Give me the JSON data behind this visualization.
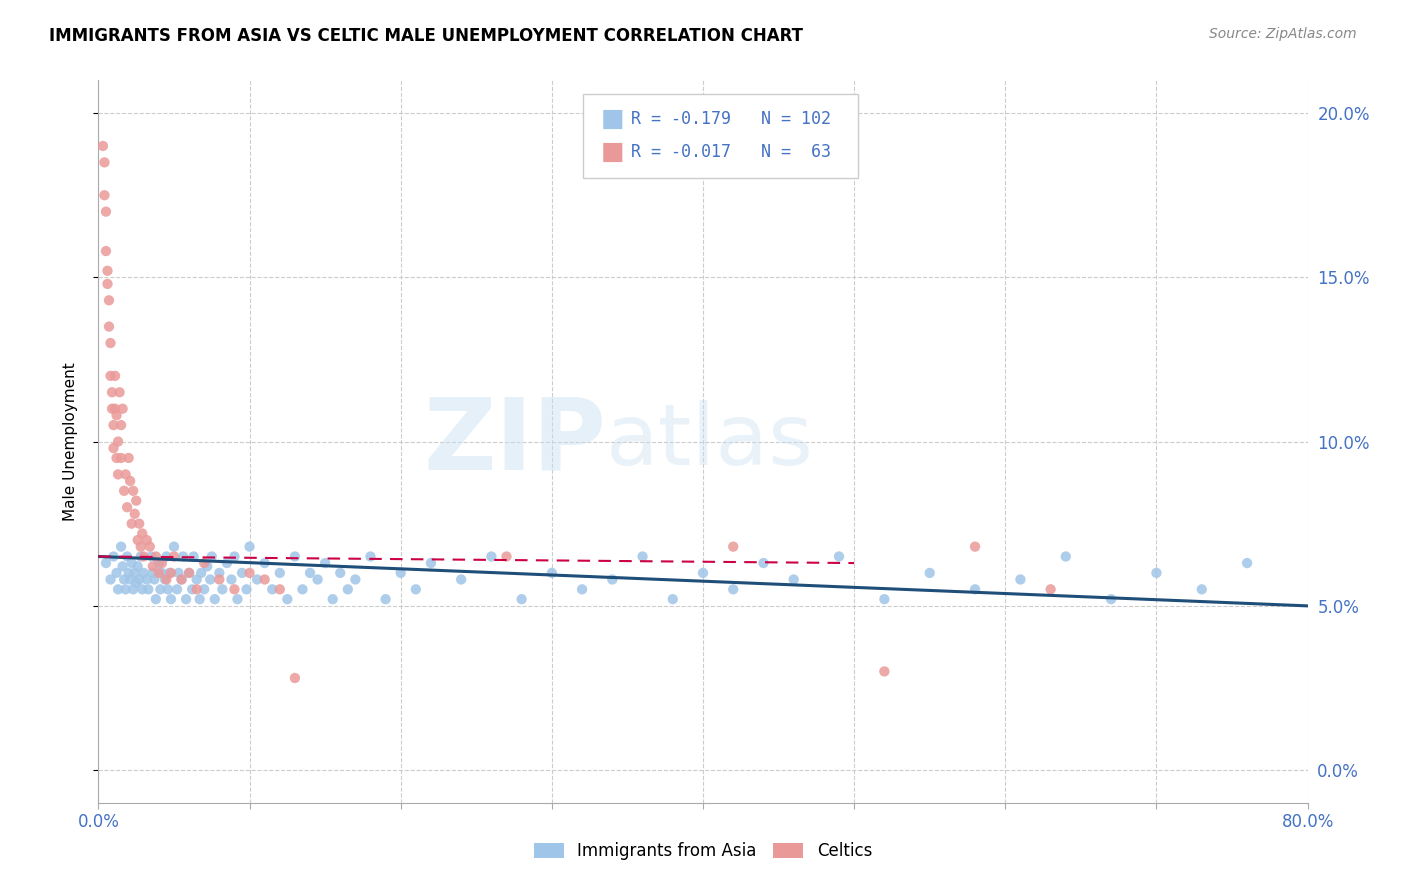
{
  "title": "IMMIGRANTS FROM ASIA VS CELTIC MALE UNEMPLOYMENT CORRELATION CHART",
  "source": "Source: ZipAtlas.com",
  "ylabel": "Male Unemployment",
  "xlim": [
    0.0,
    0.8
  ],
  "ylim": [
    -0.01,
    0.21
  ],
  "xticks": [
    0.0,
    0.1,
    0.2,
    0.3,
    0.4,
    0.5,
    0.6,
    0.7,
    0.8
  ],
  "yticks": [
    0.0,
    0.05,
    0.1,
    0.15,
    0.2
  ],
  "yticklabels": [
    "0.0%",
    "5.0%",
    "10.0%",
    "15.0%",
    "20.0%"
  ],
  "blue_color": "#9fc5e8",
  "pink_color": "#ea9999",
  "blue_line_color": "#1f4e79",
  "pink_line_color": "#cc0044",
  "axis_color": "#4472c4",
  "grid_color": "#cccccc",
  "legend_label_blue": "Immigrants from Asia",
  "legend_label_pink": "Celtics",
  "watermark_text": "ZIPatlas",
  "blue_x": [
    0.005,
    0.008,
    0.01,
    0.012,
    0.013,
    0.015,
    0.016,
    0.017,
    0.018,
    0.019,
    0.02,
    0.021,
    0.022,
    0.023,
    0.024,
    0.025,
    0.026,
    0.027,
    0.028,
    0.029,
    0.03,
    0.032,
    0.033,
    0.035,
    0.036,
    0.037,
    0.038,
    0.04,
    0.041,
    0.042,
    0.044,
    0.045,
    0.046,
    0.047,
    0.048,
    0.05,
    0.052,
    0.053,
    0.055,
    0.056,
    0.058,
    0.06,
    0.062,
    0.063,
    0.065,
    0.067,
    0.068,
    0.07,
    0.072,
    0.074,
    0.075,
    0.077,
    0.08,
    0.082,
    0.085,
    0.088,
    0.09,
    0.092,
    0.095,
    0.098,
    0.1,
    0.105,
    0.11,
    0.115,
    0.12,
    0.125,
    0.13,
    0.135,
    0.14,
    0.145,
    0.15,
    0.155,
    0.16,
    0.165,
    0.17,
    0.18,
    0.19,
    0.2,
    0.21,
    0.22,
    0.24,
    0.26,
    0.28,
    0.3,
    0.32,
    0.34,
    0.36,
    0.38,
    0.4,
    0.42,
    0.44,
    0.46,
    0.49,
    0.52,
    0.55,
    0.58,
    0.61,
    0.64,
    0.67,
    0.7,
    0.73,
    0.76
  ],
  "blue_y": [
    0.063,
    0.058,
    0.065,
    0.06,
    0.055,
    0.068,
    0.062,
    0.058,
    0.055,
    0.065,
    0.06,
    0.058,
    0.063,
    0.055,
    0.06,
    0.057,
    0.062,
    0.058,
    0.065,
    0.055,
    0.06,
    0.058,
    0.055,
    0.065,
    0.06,
    0.058,
    0.052,
    0.063,
    0.055,
    0.06,
    0.058,
    0.065,
    0.055,
    0.06,
    0.052,
    0.068,
    0.055,
    0.06,
    0.058,
    0.065,
    0.052,
    0.06,
    0.055,
    0.065,
    0.058,
    0.052,
    0.06,
    0.055,
    0.062,
    0.058,
    0.065,
    0.052,
    0.06,
    0.055,
    0.063,
    0.058,
    0.065,
    0.052,
    0.06,
    0.055,
    0.068,
    0.058,
    0.063,
    0.055,
    0.06,
    0.052,
    0.065,
    0.055,
    0.06,
    0.058,
    0.063,
    0.052,
    0.06,
    0.055,
    0.058,
    0.065,
    0.052,
    0.06,
    0.055,
    0.063,
    0.058,
    0.065,
    0.052,
    0.06,
    0.055,
    0.058,
    0.065,
    0.052,
    0.06,
    0.055,
    0.063,
    0.058,
    0.065,
    0.052,
    0.06,
    0.055,
    0.058,
    0.065,
    0.052,
    0.06,
    0.055,
    0.063
  ],
  "pink_x": [
    0.003,
    0.004,
    0.004,
    0.005,
    0.005,
    0.006,
    0.006,
    0.007,
    0.007,
    0.008,
    0.008,
    0.009,
    0.009,
    0.01,
    0.01,
    0.011,
    0.011,
    0.012,
    0.012,
    0.013,
    0.013,
    0.014,
    0.015,
    0.015,
    0.016,
    0.017,
    0.018,
    0.019,
    0.02,
    0.021,
    0.022,
    0.023,
    0.024,
    0.025,
    0.026,
    0.027,
    0.028,
    0.029,
    0.03,
    0.032,
    0.034,
    0.036,
    0.038,
    0.04,
    0.042,
    0.045,
    0.048,
    0.05,
    0.055,
    0.06,
    0.065,
    0.07,
    0.08,
    0.09,
    0.1,
    0.11,
    0.12,
    0.13,
    0.27,
    0.42,
    0.52,
    0.58,
    0.63
  ],
  "pink_y": [
    0.19,
    0.185,
    0.175,
    0.17,
    0.158,
    0.152,
    0.148,
    0.143,
    0.135,
    0.13,
    0.12,
    0.115,
    0.11,
    0.105,
    0.098,
    0.12,
    0.11,
    0.108,
    0.095,
    0.1,
    0.09,
    0.115,
    0.105,
    0.095,
    0.11,
    0.085,
    0.09,
    0.08,
    0.095,
    0.088,
    0.075,
    0.085,
    0.078,
    0.082,
    0.07,
    0.075,
    0.068,
    0.072,
    0.065,
    0.07,
    0.068,
    0.062,
    0.065,
    0.06,
    0.063,
    0.058,
    0.06,
    0.065,
    0.058,
    0.06,
    0.055,
    0.063,
    0.058,
    0.055,
    0.06,
    0.058,
    0.055,
    0.028,
    0.065,
    0.068,
    0.03,
    0.068,
    0.055
  ]
}
